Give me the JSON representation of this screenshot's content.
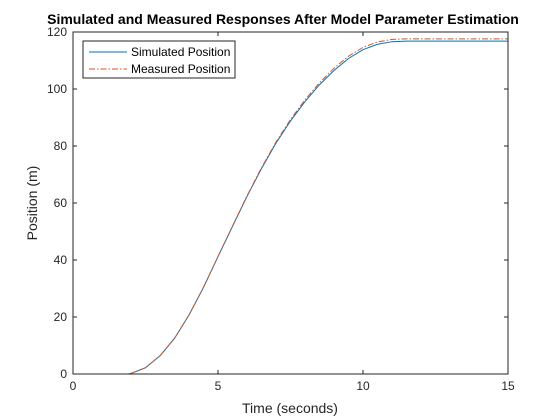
{
  "chart_data": {
    "type": "line",
    "title": "Simulated and Measured Responses After Model Parameter Estimation",
    "xlabel": "Time (seconds)",
    "ylabel": "Position (m)",
    "xlim": [
      0,
      15
    ],
    "ylim": [
      0,
      120
    ],
    "xticks": [
      0,
      5,
      10,
      15
    ],
    "yticks": [
      0,
      20,
      40,
      60,
      80,
      100,
      120
    ],
    "grid": false,
    "legend_position": "top-left",
    "series": [
      {
        "name": "Simulated Position",
        "color": "#0072BD",
        "style": "solid",
        "x": [
          0,
          1,
          1.9,
          2,
          2.5,
          3,
          3.5,
          4,
          4.5,
          5,
          5.5,
          6,
          6.5,
          7,
          7.5,
          8,
          8.5,
          9,
          9.5,
          10,
          10.5,
          11,
          11.5,
          12,
          13,
          14,
          15
        ],
        "y": [
          0,
          0,
          0,
          0.2,
          2.2,
          6.4,
          12.5,
          20.7,
          30.4,
          41.2,
          51.8,
          62.3,
          72.1,
          81,
          88.8,
          95.6,
          101.5,
          106.5,
          110.7,
          113.8,
          115.7,
          116.6,
          116.8,
          116.8,
          116.8,
          116.8,
          116.8
        ]
      },
      {
        "name": "Measured Position",
        "color": "#D95319",
        "style": "dashdot",
        "x": [
          0,
          1,
          1.9,
          2,
          2.5,
          3,
          3.5,
          4,
          4.5,
          5,
          5.5,
          6,
          6.5,
          7,
          7.5,
          8,
          8.5,
          9,
          9.5,
          10,
          10.5,
          11,
          11.5,
          12,
          13,
          14,
          15
        ],
        "y": [
          0,
          0,
          0,
          0.2,
          2.2,
          6.4,
          12.5,
          20.7,
          30.4,
          41.2,
          51.9,
          62.5,
          72.4,
          81.4,
          89.3,
          96.2,
          102.2,
          107.3,
          111.5,
          114.6,
          116.5,
          117.4,
          117.6,
          117.6,
          117.6,
          117.6,
          117.6
        ]
      }
    ]
  }
}
